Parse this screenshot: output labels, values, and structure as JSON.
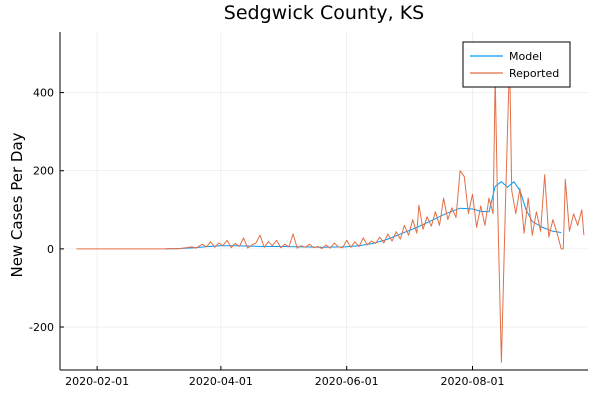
{
  "chart_data": {
    "type": "line",
    "title": "Sedgwick County, KS",
    "xlabel": "",
    "ylabel": "New Cases Per Day",
    "x_axis": "date",
    "xlim": [
      "2020-01-14",
      "2020-09-26"
    ],
    "ylim": [
      -310,
      555
    ],
    "xticks": [
      "2020-02-01",
      "2020-04-01",
      "2020-06-01",
      "2020-08-01"
    ],
    "yticks": [
      -200,
      0,
      200,
      400
    ],
    "grid": true,
    "legend": {
      "placement": "top-right",
      "entries": [
        "Model",
        "Reported"
      ]
    },
    "series": [
      {
        "name": "Model",
        "color": "#009AFA",
        "points": [
          [
            "2020-03-05",
            0
          ],
          [
            "2020-03-12",
            1
          ],
          [
            "2020-03-19",
            3
          ],
          [
            "2020-03-26",
            6
          ],
          [
            "2020-04-01",
            8
          ],
          [
            "2020-04-08",
            8
          ],
          [
            "2020-04-15",
            7
          ],
          [
            "2020-04-22",
            6
          ],
          [
            "2020-05-01",
            6
          ],
          [
            "2020-05-10",
            5
          ],
          [
            "2020-05-20",
            4
          ],
          [
            "2020-05-31",
            5
          ],
          [
            "2020-06-07",
            8
          ],
          [
            "2020-06-14",
            14
          ],
          [
            "2020-06-21",
            25
          ],
          [
            "2020-06-28",
            40
          ],
          [
            "2020-07-05",
            55
          ],
          [
            "2020-07-12",
            72
          ],
          [
            "2020-07-19",
            90
          ],
          [
            "2020-07-26",
            104
          ],
          [
            "2020-08-01",
            102
          ],
          [
            "2020-08-05",
            96
          ],
          [
            "2020-08-09",
            95
          ],
          [
            "2020-08-12",
            160
          ],
          [
            "2020-08-15",
            172
          ],
          [
            "2020-08-18",
            158
          ],
          [
            "2020-08-21",
            172
          ],
          [
            "2020-08-24",
            150
          ],
          [
            "2020-08-27",
            100
          ],
          [
            "2020-08-30",
            70
          ],
          [
            "2020-09-04",
            55
          ],
          [
            "2020-09-09",
            45
          ],
          [
            "2020-09-13",
            42
          ]
        ]
      },
      {
        "name": "Reported",
        "color": "#E26F46",
        "points": [
          [
            "2020-01-22",
            0
          ],
          [
            "2020-03-05",
            0
          ],
          [
            "2020-03-08",
            1
          ],
          [
            "2020-03-11",
            0
          ],
          [
            "2020-03-15",
            3
          ],
          [
            "2020-03-18",
            5
          ],
          [
            "2020-03-20",
            2
          ],
          [
            "2020-03-23",
            12
          ],
          [
            "2020-03-25",
            5
          ],
          [
            "2020-03-27",
            18
          ],
          [
            "2020-03-29",
            4
          ],
          [
            "2020-03-31",
            15
          ],
          [
            "2020-04-02",
            8
          ],
          [
            "2020-04-04",
            22
          ],
          [
            "2020-04-06",
            3
          ],
          [
            "2020-04-08",
            14
          ],
          [
            "2020-04-10",
            6
          ],
          [
            "2020-04-12",
            28
          ],
          [
            "2020-04-14",
            2
          ],
          [
            "2020-04-16",
            10
          ],
          [
            "2020-04-18",
            15
          ],
          [
            "2020-04-20",
            35
          ],
          [
            "2020-04-22",
            4
          ],
          [
            "2020-04-24",
            18
          ],
          [
            "2020-04-26",
            8
          ],
          [
            "2020-04-28",
            22
          ],
          [
            "2020-04-30",
            3
          ],
          [
            "2020-05-02",
            12
          ],
          [
            "2020-05-04",
            5
          ],
          [
            "2020-05-06",
            38
          ],
          [
            "2020-05-08",
            2
          ],
          [
            "2020-05-10",
            8
          ],
          [
            "2020-05-12",
            4
          ],
          [
            "2020-05-14",
            12
          ],
          [
            "2020-05-16",
            3
          ],
          [
            "2020-05-18",
            6
          ],
          [
            "2020-05-20",
            1
          ],
          [
            "2020-05-22",
            10
          ],
          [
            "2020-05-24",
            2
          ],
          [
            "2020-05-26",
            15
          ],
          [
            "2020-05-28",
            5
          ],
          [
            "2020-05-30",
            3
          ],
          [
            "2020-06-01",
            22
          ],
          [
            "2020-06-03",
            4
          ],
          [
            "2020-06-05",
            18
          ],
          [
            "2020-06-07",
            6
          ],
          [
            "2020-06-09",
            28
          ],
          [
            "2020-06-11",
            10
          ],
          [
            "2020-06-13",
            20
          ],
          [
            "2020-06-15",
            14
          ],
          [
            "2020-06-17",
            30
          ],
          [
            "2020-06-19",
            15
          ],
          [
            "2020-06-21",
            38
          ],
          [
            "2020-06-23",
            20
          ],
          [
            "2020-06-25",
            44
          ],
          [
            "2020-06-27",
            25
          ],
          [
            "2020-06-29",
            60
          ],
          [
            "2020-07-01",
            35
          ],
          [
            "2020-07-03",
            75
          ],
          [
            "2020-07-05",
            40
          ],
          [
            "2020-07-06",
            112
          ],
          [
            "2020-07-08",
            50
          ],
          [
            "2020-07-10",
            82
          ],
          [
            "2020-07-12",
            58
          ],
          [
            "2020-07-14",
            95
          ],
          [
            "2020-07-16",
            60
          ],
          [
            "2020-07-18",
            130
          ],
          [
            "2020-07-20",
            75
          ],
          [
            "2020-07-22",
            105
          ],
          [
            "2020-07-24",
            80
          ],
          [
            "2020-07-26",
            200
          ],
          [
            "2020-07-28",
            185
          ],
          [
            "2020-07-30",
            90
          ],
          [
            "2020-08-01",
            140
          ],
          [
            "2020-08-03",
            55
          ],
          [
            "2020-08-05",
            110
          ],
          [
            "2020-08-07",
            60
          ],
          [
            "2020-08-09",
            130
          ],
          [
            "2020-08-11",
            90
          ],
          [
            "2020-08-12",
            440
          ],
          [
            "2020-08-13",
            150
          ],
          [
            "2020-08-15",
            -290
          ],
          [
            "2020-08-17",
            120
          ],
          [
            "2020-08-19",
            490
          ],
          [
            "2020-08-20",
            150
          ],
          [
            "2020-08-22",
            90
          ],
          [
            "2020-08-24",
            155
          ],
          [
            "2020-08-26",
            40
          ],
          [
            "2020-08-28",
            130
          ],
          [
            "2020-08-30",
            35
          ],
          [
            "2020-09-01",
            95
          ],
          [
            "2020-09-03",
            45
          ],
          [
            "2020-09-05",
            190
          ],
          [
            "2020-09-07",
            30
          ],
          [
            "2020-09-09",
            75
          ],
          [
            "2020-09-11",
            40
          ],
          [
            "2020-09-13",
            0
          ],
          [
            "2020-09-14",
            0
          ],
          [
            "2020-09-15",
            178
          ],
          [
            "2020-09-17",
            45
          ],
          [
            "2020-09-19",
            90
          ],
          [
            "2020-09-21",
            60
          ],
          [
            "2020-09-23",
            100
          ],
          [
            "2020-09-24",
            35
          ]
        ]
      }
    ]
  }
}
